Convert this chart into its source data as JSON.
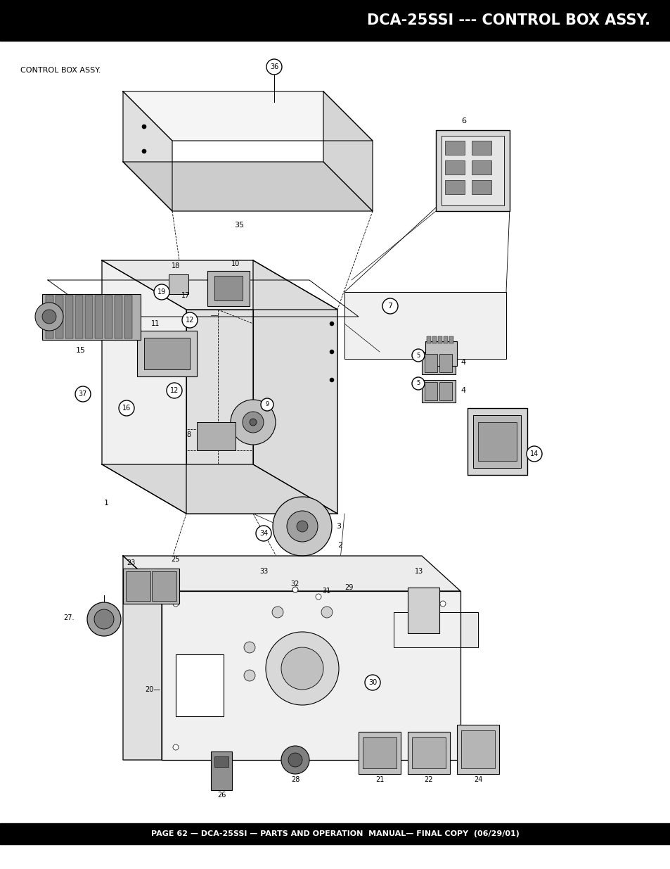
{
  "title": "DCA-25SSI --- CONTROL BOX ASSY.",
  "subtitle": "CONTROL BOX ASSY.",
  "footer": "PAGE 62 — DCA-25SSI — PARTS AND OPERATION  MANUAL— FINAL COPY  (06/29/01)",
  "header_bg": "#000000",
  "header_text_color": "#ffffff",
  "footer_bg": "#000000",
  "footer_text_color": "#ffffff",
  "page_bg": "#ffffff",
  "title_fontsize": 15,
  "subtitle_fontsize": 8,
  "footer_fontsize": 8,
  "fig_width": 9.54,
  "fig_height": 12.35
}
